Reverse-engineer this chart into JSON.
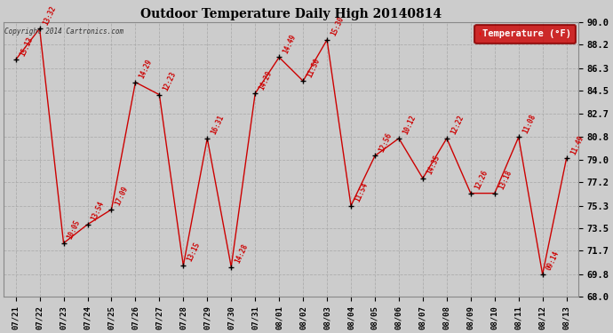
{
  "title": "Outdoor Temperature Daily High 20140814",
  "legend_label": "Temperature (°F)",
  "copyright_text": "Copyright 2014 Cartronics.com",
  "background_color": "#cccccc",
  "plot_bg_color": "#cccccc",
  "line_color": "#cc0000",
  "marker_color": "#000000",
  "annotation_color": "#cc0000",
  "ylim": [
    68.0,
    90.0
  ],
  "yticks": [
    68.0,
    69.8,
    71.7,
    73.5,
    75.3,
    77.2,
    79.0,
    80.8,
    82.7,
    84.5,
    86.3,
    88.2,
    90.0
  ],
  "dates": [
    "07/21",
    "07/22",
    "07/23",
    "07/24",
    "07/25",
    "07/26",
    "07/27",
    "07/28",
    "07/29",
    "07/30",
    "07/31",
    "08/01",
    "08/02",
    "08/03",
    "08/04",
    "08/05",
    "08/06",
    "08/07",
    "08/08",
    "08/09",
    "08/10",
    "08/11",
    "08/12",
    "08/13"
  ],
  "values": [
    87.0,
    89.5,
    72.3,
    73.8,
    75.0,
    85.2,
    84.2,
    70.5,
    80.7,
    70.4,
    84.3,
    87.2,
    85.3,
    88.6,
    75.3,
    79.3,
    80.7,
    77.5,
    80.7,
    76.3,
    76.3,
    80.8,
    69.8,
    79.1
  ],
  "annotations": [
    "15:13",
    "13:32",
    "10:05",
    "13:54",
    "17:09",
    "14:29",
    "12:23",
    "13:15",
    "16:31",
    "14:28",
    "14:29",
    "14:49",
    "11:50",
    "15:30",
    "11:54",
    "12:56",
    "10:12",
    "14:35",
    "12:22",
    "12:26",
    "13:18",
    "11:08",
    "09:14",
    "11:49"
  ],
  "figwidth": 6.9,
  "figheight": 3.75,
  "dpi": 100
}
